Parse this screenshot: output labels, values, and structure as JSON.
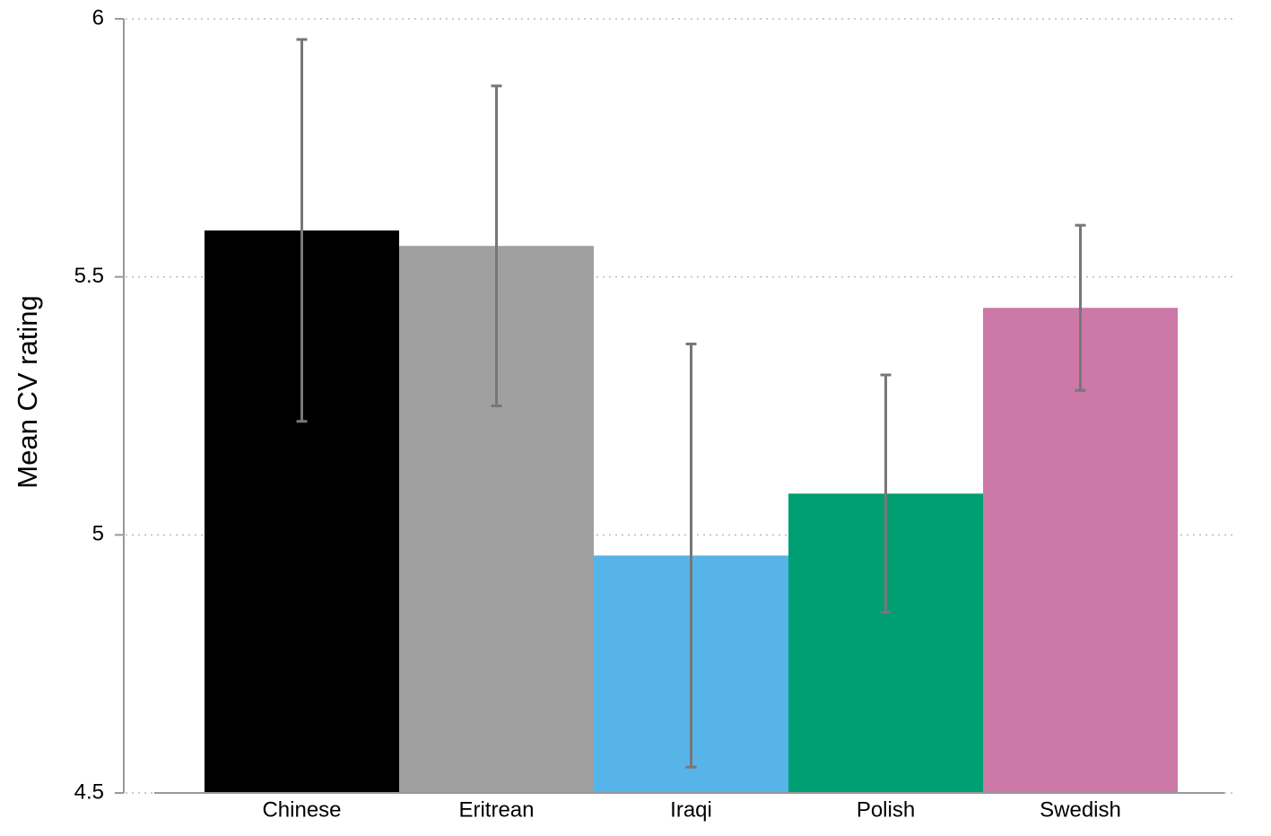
{
  "chart_data": {
    "type": "bar",
    "y_label": "Mean CV rating",
    "categories": [
      "Chinese",
      "Eritrean",
      "Iraqi",
      "Polish",
      "Swedish"
    ],
    "values": [
      5.59,
      5.56,
      4.96,
      5.08,
      5.44
    ],
    "errors": [
      0.37,
      0.31,
      0.41,
      0.23,
      0.16
    ],
    "colors": [
      "#000000",
      "#a0a0a0",
      "#56b4e9",
      "#009e73",
      "#cc79a7"
    ],
    "error_color": "#777777",
    "ylim": [
      4.5,
      6
    ],
    "yticks": [
      4.5,
      5,
      5.5,
      6
    ],
    "grid": true
  }
}
